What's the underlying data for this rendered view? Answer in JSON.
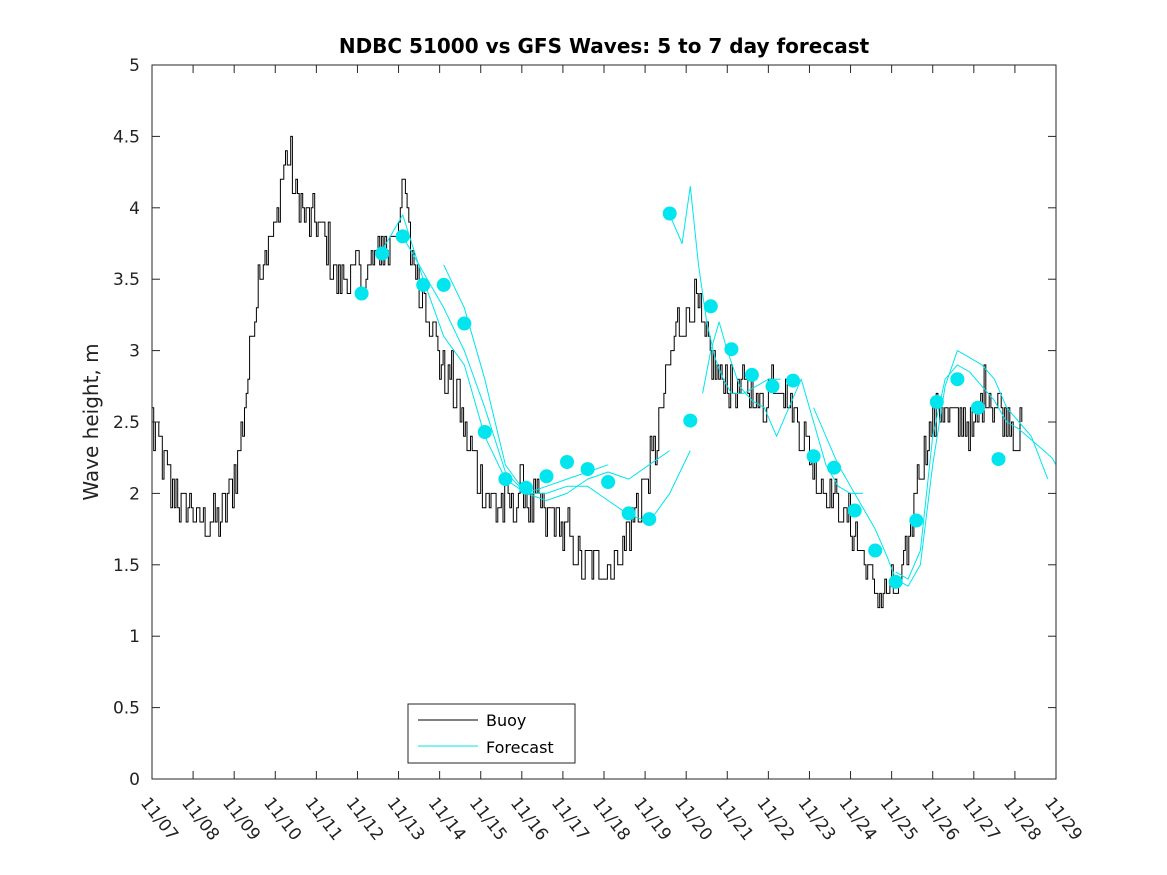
{
  "chart_data": {
    "type": "line",
    "title": "NDBC 51000 vs GFS Waves: 5 to 7 day forecast",
    "xlabel": "",
    "ylabel": "Wave height, m",
    "x_unit": "days since 11/07",
    "xlim": [
      0,
      22
    ],
    "ylim": [
      0,
      5
    ],
    "x_tick_values": [
      0,
      1,
      2,
      3,
      4,
      5,
      6,
      7,
      8,
      9,
      10,
      11,
      12,
      13,
      14,
      15,
      16,
      17,
      18,
      19,
      20,
      21,
      22
    ],
    "x_tick_labels": [
      "11/07",
      "11/08",
      "11/09",
      "11/10",
      "11/11",
      "11/12",
      "11/13",
      "11/14",
      "11/15",
      "11/16",
      "11/17",
      "11/18",
      "11/19",
      "11/20",
      "11/21",
      "11/22",
      "11/23",
      "11/24",
      "11/25",
      "11/26",
      "11/27",
      "11/28",
      "11/29"
    ],
    "y_tick_values": [
      0,
      0.5,
      1,
      1.5,
      2,
      2.5,
      3,
      3.5,
      4,
      4.5,
      5
    ],
    "y_tick_labels": [
      "0",
      "0.5",
      "1",
      "1.5",
      "2",
      "2.5",
      "3",
      "3.5",
      "4",
      "4.5",
      "5"
    ],
    "legend": {
      "position": "bottom-center",
      "entries": [
        "Buoy",
        "Forecast"
      ]
    },
    "colors": {
      "buoy": "#000000",
      "forecast": "#00e5ee",
      "axis": "#262626"
    },
    "series": [
      {
        "name": "Buoy",
        "x": [
          0,
          0.15,
          0.3,
          0.5,
          0.8,
          1.0,
          1.3,
          1.6,
          1.75,
          2.0,
          2.2,
          2.4,
          2.6,
          2.8,
          3.0,
          3.2,
          3.3,
          3.5,
          3.7,
          3.9,
          4.1,
          4.3,
          4.5,
          4.7,
          4.9,
          5.0,
          5.2,
          5.4,
          5.6,
          5.8,
          6.0,
          6.15,
          6.3,
          6.5,
          6.7,
          6.9,
          7.1,
          7.3,
          7.5,
          7.7,
          7.9,
          8.1,
          8.3,
          8.5,
          8.7,
          8.9,
          9.1,
          9.3,
          9.5,
          9.8,
          10.1,
          10.4,
          10.7,
          11.0,
          11.3,
          11.6,
          11.9,
          12.2,
          12.5,
          12.8,
          13.0,
          13.2,
          13.4,
          13.5,
          13.6,
          13.8,
          14.0,
          14.2,
          14.4,
          14.6,
          14.8,
          15.0,
          15.2,
          15.4,
          15.6,
          15.8,
          16.0,
          16.2,
          16.4,
          16.6,
          16.8,
          17.0,
          17.2,
          17.4,
          17.6,
          17.8,
          18.0,
          18.2,
          18.4,
          18.6,
          18.8,
          19.0,
          19.2,
          19.4,
          19.6,
          19.8,
          19.95,
          20.1,
          20.3,
          20.5,
          20.7,
          20.9,
          21.0,
          21.2
        ],
        "values": [
          2.5,
          2.3,
          2.2,
          2.0,
          1.9,
          1.85,
          1.8,
          1.75,
          1.9,
          2.05,
          2.5,
          3.0,
          3.6,
          3.7,
          3.85,
          4.25,
          4.4,
          4.05,
          3.9,
          3.9,
          3.8,
          3.65,
          3.5,
          3.5,
          3.5,
          3.55,
          3.5,
          3.6,
          3.7,
          3.75,
          3.95,
          4.1,
          3.7,
          3.45,
          3.3,
          3.05,
          2.85,
          2.75,
          2.6,
          2.35,
          2.15,
          2.0,
          1.9,
          1.85,
          1.9,
          1.95,
          1.95,
          1.9,
          1.85,
          1.8,
          1.7,
          1.55,
          1.45,
          1.5,
          1.55,
          1.7,
          1.95,
          2.25,
          2.75,
          3.2,
          3.25,
          3.35,
          3.1,
          3.0,
          2.9,
          2.8,
          2.75,
          2.7,
          2.75,
          2.7,
          2.55,
          2.7,
          2.85,
          2.7,
          2.55,
          2.4,
          2.3,
          2.1,
          2.0,
          1.95,
          1.85,
          1.75,
          1.6,
          1.45,
          1.3,
          1.25,
          1.25,
          1.3,
          1.6,
          2.1,
          2.3,
          2.5,
          2.6,
          2.5,
          2.45,
          2.5,
          2.4,
          2.5,
          2.7,
          2.6,
          2.55,
          2.5,
          2.4,
          2.45
        ]
      },
      {
        "name": "Forecast",
        "markers": {
          "x": [
            5.1,
            5.6,
            6.1,
            6.6,
            7.1,
            7.6,
            8.1,
            8.6,
            9.1,
            9.6,
            10.1,
            10.6,
            11.1,
            11.6,
            12.1,
            12.6,
            13.1,
            13.6,
            14.1,
            14.6,
            15.1,
            15.6,
            16.1,
            16.6,
            17.1,
            17.6,
            18.1,
            18.6,
            19.1,
            19.6,
            20.1,
            20.6,
            21.1,
            21.6
          ],
          "values": [
            3.4,
            3.68,
            3.8,
            3.46,
            3.46,
            3.19,
            2.43,
            2.1,
            2.04,
            2.12,
            2.22,
            2.17,
            2.08,
            1.86,
            1.82,
            3.96,
            2.51,
            3.31,
            3.01,
            2.83,
            2.75,
            2.79,
            2.26,
            2.18,
            1.88,
            1.6,
            1.38,
            1.81,
            2.64,
            2.8,
            2.6,
            2.24,
            null,
            null
          ]
        },
        "runs": [
          {
            "x": [
              5.6,
              6.1,
              6.6,
              7.1,
              7.6,
              8.1,
              8.6,
              9.1,
              9.6,
              10.1,
              10.6,
              11.1
            ],
            "values": [
              3.7,
              3.95,
              3.5,
              3.1,
              2.9,
              2.4,
              2.1,
              2.0,
              2.05,
              2.1,
              2.15,
              2.2
            ]
          },
          {
            "x": [
              6.1,
              6.6,
              7.1,
              7.6,
              8.1,
              8.6,
              9.1,
              9.6,
              10.1,
              10.6,
              11.1,
              11.6,
              12.1,
              12.6
            ],
            "values": [
              3.8,
              3.55,
              3.3,
              3.0,
              2.6,
              2.15,
              2.0,
              1.95,
              2.0,
              2.1,
              2.15,
              2.1,
              2.2,
              2.3
            ]
          },
          {
            "x": [
              7.1,
              7.6,
              8.1,
              8.6,
              9.1,
              9.6,
              10.1,
              10.6,
              11.1,
              11.6,
              12.1,
              12.6,
              13.1
            ],
            "values": [
              3.6,
              3.3,
              2.8,
              2.2,
              2.0,
              2.0,
              2.05,
              2.05,
              1.95,
              1.85,
              1.8,
              2.0,
              2.3
            ]
          },
          {
            "x": [
              12.6,
              12.9,
              13.1,
              13.3,
              13.5,
              13.7,
              13.9,
              14.1,
              14.4,
              14.7,
              15.0,
              15.3
            ],
            "values": [
              3.95,
              3.75,
              4.15,
              3.6,
              3.2,
              2.95,
              2.8,
              2.7,
              2.7,
              2.75,
              2.8,
              2.8
            ]
          },
          {
            "x": [
              13.4,
              13.6,
              13.8,
              14.0,
              14.3,
              14.6,
              14.9,
              15.2,
              15.5,
              15.8,
              16.1,
              16.4,
              16.7,
              17.0,
              17.3
            ],
            "values": [
              2.7,
              3.0,
              3.2,
              3.0,
              2.75,
              2.65,
              2.6,
              2.4,
              2.6,
              2.8,
              2.5,
              2.2,
              2.05,
              2.0,
              2.0
            ]
          },
          {
            "x": [
              16.1,
              16.4,
              16.7,
              17.0,
              17.3,
              17.6,
              17.9,
              18.1,
              18.4,
              18.7,
              19.0,
              19.3,
              19.6,
              19.9,
              20.2,
              20.5,
              20.8,
              21.1,
              21.4,
              21.8
            ],
            "values": [
              2.6,
              2.4,
              2.2,
              2.05,
              1.9,
              1.75,
              1.55,
              1.4,
              1.35,
              1.5,
              2.2,
              2.75,
              3.0,
              2.95,
              2.9,
              2.8,
              2.6,
              2.5,
              2.4,
              2.1
            ]
          },
          {
            "x": [
              18.1,
              18.4,
              18.7,
              19.0,
              19.3,
              19.6,
              19.9,
              20.2,
              20.5,
              20.8,
              21.1,
              21.5,
              21.9,
              22.0
            ],
            "values": [
              1.45,
              1.4,
              1.6,
              2.4,
              2.8,
              2.9,
              2.85,
              2.75,
              2.65,
              2.5,
              2.45,
              2.35,
              2.25,
              2.2
            ]
          }
        ]
      }
    ]
  }
}
